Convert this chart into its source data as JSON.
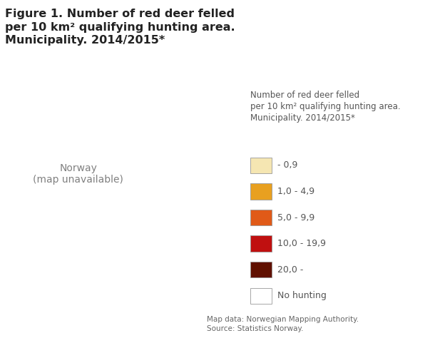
{
  "title_line1": "Figure 1. Number of red deer felled",
  "title_line2": "per 10 km² qualifying hunting area.",
  "title_line3": "Municipality. 2014/2015*",
  "legend_title_line1": "Number of red deer felled",
  "legend_title_line2": "per 10 km² qualifying hunting area.",
  "legend_title_line3": "Municipality. 2014/2015*",
  "legend_labels": [
    "- 0,9",
    "1,0 - 4,9",
    "5,0 - 9,9",
    "10,0 - 19,9",
    "20,0 -",
    "No hunting"
  ],
  "legend_colors": [
    "#F5E6B2",
    "#E8A020",
    "#E05A18",
    "#C01010",
    "#601000",
    "#FFFFFF"
  ],
  "legend_edge_color": "#999999",
  "figure_background": "#FFFFFF",
  "map_background": "#FFFFFF",
  "border_color": "#AAAAAA",
  "border_width": 0.35,
  "footnote_line1": "Map data: Norwegian Mapping Authority.",
  "footnote_line2": "Source: Statistics Norway.",
  "title_fontsize": 11.5,
  "legend_title_fontsize": 8.5,
  "legend_fontsize": 9.0,
  "footnote_fontsize": 7.5,
  "title_color": "#222222",
  "legend_text_color": "#555555",
  "footnote_color": "#666666",
  "map_xlim": [
    4.0,
    31.5
  ],
  "map_ylim": [
    57.5,
    71.5
  ]
}
